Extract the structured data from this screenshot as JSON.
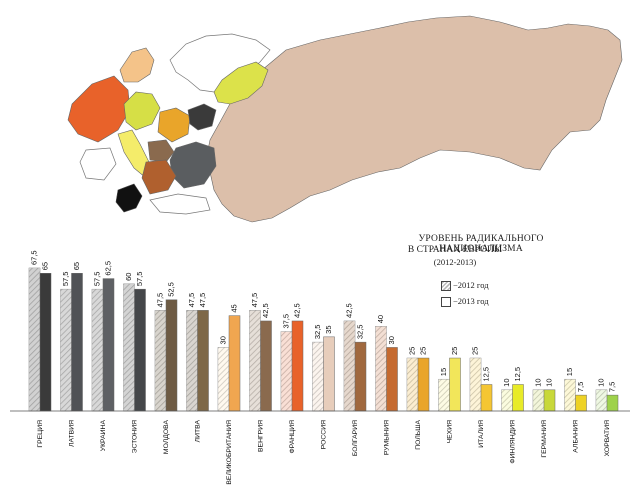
{
  "map": {
    "region_colors": {
      "russia": "#dcbfaa",
      "france": "#e8622a",
      "germany": "#d6df46",
      "poland": "#e9a52a",
      "ukraine": "#5a5d60",
      "baltics": "#3a3a3a",
      "italy": "#f4ec6a",
      "hungary": "#8a6a4e",
      "balkans": "#b0602e",
      "greece": "#111111",
      "finland": "#dce24a",
      "uk": "#f4c389",
      "outline": "#666666"
    }
  },
  "chart_data": {
    "type": "bar",
    "title": "УРОВЕНЬ РАДИКАЛЬНОГО НАЦИОНАЛИЗМА",
    "subtitle": "В СТРАНАХ ЕВРОПЫ",
    "period": "(2012-2013)",
    "legend": [
      {
        "label": "−2012 год",
        "style": "hatched"
      },
      {
        "label": "−2013 год",
        "style": "blank"
      }
    ],
    "categories": [
      "ГРЕЦИЯ",
      "ЛАТВИЯ",
      "УКРАИНА",
      "ЭСТОНИЯ",
      "МОЛДОВА",
      "ЛИТВА",
      "ВЕЛИКОБРИТАНИЯ",
      "ВЕНГРИЯ",
      "ФРАНЦИЯ",
      "РОССИЯ",
      "БОЛГАРИЯ",
      "РУМЫНИЯ",
      "ПОЛЬША",
      "ЧЕХИЯ",
      "ИТАЛИЯ",
      "ФИНЛЯНДИЯ",
      "ГЕРМАНИЯ",
      "АЛБАНИЯ",
      "ХОРВАТИЯ"
    ],
    "series": [
      {
        "name": "−2012 год",
        "values": [
          67.5,
          57.5,
          57.5,
          60,
          47.5,
          47.5,
          30,
          47.5,
          37.5,
          32.5,
          42.5,
          40,
          25,
          15,
          25,
          10,
          10,
          15,
          10
        ]
      },
      {
        "name": "−2013 год",
        "values": [
          65,
          65,
          62.5,
          57.5,
          52.5,
          47.5,
          45,
          42.5,
          42.5,
          35,
          32.5,
          30,
          25,
          25,
          12.5,
          12.5,
          10,
          7.5,
          7.5
        ]
      }
    ],
    "value_labels_2012": [
      "67,5",
      "57,5",
      "57,5",
      "60",
      "47,5",
      "47,5",
      "30",
      "47,5",
      "37,5",
      "32,5",
      "42,5",
      "40",
      "25",
      "15",
      "25",
      "10",
      "10",
      "15",
      "10"
    ],
    "value_labels_2013": [
      "65",
      "65",
      "62,5",
      "57,5",
      "52,5",
      "47,5",
      "45",
      "42,5",
      "42,5",
      "35",
      "32,5",
      "30",
      "25",
      "25",
      "12,5",
      "12,5",
      "10",
      "7,5",
      "7,5"
    ],
    "colors_2013": [
      "#3a3a3a",
      "#505256",
      "#5e6064",
      "#45474a",
      "#6e5b44",
      "#7e6848",
      "#f0a650",
      "#8a6a4e",
      "#e8622a",
      "#e7cdbb",
      "#a0683e",
      "#c56a30",
      "#e9a52a",
      "#f2e65a",
      "#f5c633",
      "#e8eb28",
      "#c8d83a",
      "#eed225",
      "#9ed24a"
    ],
    "colors_2012": [
      "#9a9a9a",
      "#a8a8a8",
      "#a8a8a8",
      "#a0a0a0",
      "#a8a090",
      "#aaa296",
      "#fff2dc",
      "#c8b8a8",
      "#f1b8a2",
      "#f6e6da",
      "#c8a890",
      "#e4b8a0",
      "#f6d898",
      "#fbf6c4",
      "#fbe6a8",
      "#f7f8b8",
      "#e4ecb0",
      "#faf0a8",
      "#dcefc0"
    ],
    "ylim": [
      0,
      70
    ],
    "grid": false
  }
}
